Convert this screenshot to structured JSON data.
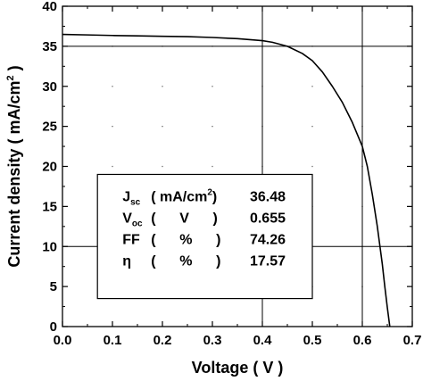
{
  "chart_data": {
    "type": "line",
    "xlabel": "Voltage ( V )",
    "ylabel_main": "Current density ( mA/cm",
    "ylabel_sup": "2",
    "ylabel_tail": " )",
    "xlim": [
      0.0,
      0.7
    ],
    "ylim": [
      0,
      40
    ],
    "x_ticks": [
      "0.0",
      "0.1",
      "0.2",
      "0.3",
      "0.4",
      "0.5",
      "0.6",
      "0.7"
    ],
    "y_ticks": [
      "0",
      "5",
      "10",
      "15",
      "20",
      "25",
      "30",
      "35",
      "40"
    ],
    "grid": "dotted minor points",
    "reference_lines": {
      "vertical_x": [
        0.4,
        0.6
      ],
      "horizontal_y": [
        10,
        35
      ]
    },
    "series": [
      {
        "x": [
          0.0,
          0.05,
          0.1,
          0.15,
          0.2,
          0.25,
          0.3,
          0.35,
          0.4,
          0.42,
          0.45,
          0.48,
          0.5,
          0.52,
          0.54,
          0.56,
          0.58,
          0.6,
          0.61,
          0.62,
          0.63,
          0.64,
          0.645,
          0.65,
          0.655
        ],
        "values": [
          36.48,
          36.42,
          36.35,
          36.3,
          36.25,
          36.2,
          36.1,
          35.95,
          35.7,
          35.5,
          35.0,
          34.1,
          33.2,
          31.8,
          30.0,
          28.0,
          25.5,
          22.5,
          20.0,
          16.5,
          12.5,
          7.8,
          5.0,
          2.4,
          0
        ]
      }
    ],
    "table": {
      "rows": [
        {
          "label": "J",
          "sub": "sc",
          "unit_pre": "( mA/cm",
          "unit_sup": "2",
          "unit_post": ")",
          "value": "36.48"
        },
        {
          "label": "V",
          "sub": "oc",
          "unit_pre": "(      V      )",
          "unit_sup": "",
          "unit_post": "",
          "value": "0.655"
        },
        {
          "label": "FF",
          "sub": "",
          "unit_pre": "(      %      )",
          "unit_sup": "",
          "unit_post": "",
          "value": "74.26"
        },
        {
          "label": "η",
          "sub": "",
          "unit_pre": "(      %      )",
          "unit_sup": "",
          "unit_post": "",
          "value": "17.57"
        }
      ]
    }
  }
}
